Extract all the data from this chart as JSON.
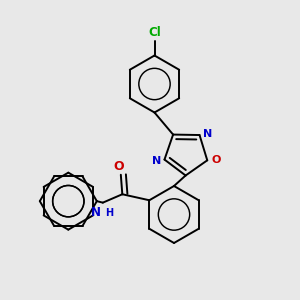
{
  "background_color": "#e8e8e8",
  "bond_color": "#000000",
  "atom_colors": {
    "N": "#0000cc",
    "O": "#cc0000",
    "Cl": "#00aa00"
  },
  "lw": 1.4,
  "double_lw": 1.4,
  "figsize": [
    3.0,
    3.0
  ],
  "dpi": 100
}
